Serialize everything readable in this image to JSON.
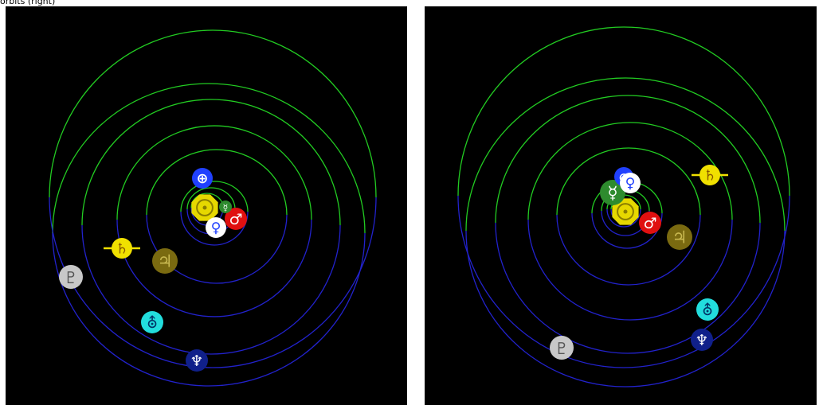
{
  "caption": "orbits (right)",
  "colors": {
    "background": "#000000",
    "orbit_far_side": "#22cc22",
    "orbit_near_side": "#2222cc"
  },
  "symbols": {
    "sun": "☉",
    "mercury": "☿",
    "venus": "♀",
    "earth": "⊕",
    "mars": "♂",
    "jupiter": "♃",
    "saturn": "♄",
    "uranus": "⛢",
    "neptune": "♆",
    "pluto": "♇"
  },
  "panels": [
    {
      "bodies": [
        {
          "name": "sun",
          "color": "#e6d800",
          "text_color": "#8a7d00"
        },
        {
          "name": "earth",
          "color": "#2040ff",
          "text_color": "#ffffff"
        },
        {
          "name": "venus",
          "color": "#ffffff",
          "text_color": "#2040ff"
        },
        {
          "name": "mars",
          "color": "#e01010",
          "text_color": "#ffffff"
        },
        {
          "name": "mercury",
          "color": "#2e8b2e",
          "text_color": "#ffffff"
        },
        {
          "name": "saturn",
          "color": "#f0e000",
          "text_color": "#8a5a00"
        },
        {
          "name": "jupiter",
          "color": "#7a6a10",
          "text_color": "#c8b850"
        },
        {
          "name": "pluto",
          "color": "#c8c8c8",
          "text_color": "#555555"
        },
        {
          "name": "uranus",
          "color": "#22dddd",
          "text_color": "#003366"
        },
        {
          "name": "neptune",
          "color": "#10208a",
          "text_color": "#ffffff"
        }
      ]
    },
    {
      "bodies": [
        {
          "name": "sun",
          "color": "#e6d800",
          "text_color": "#8a7d00"
        },
        {
          "name": "mercury",
          "color": "#2e8b2e",
          "text_color": "#ffffff"
        },
        {
          "name": "earth",
          "color": "#2040ff",
          "text_color": "#ffffff"
        },
        {
          "name": "venus",
          "color": "#ffffff",
          "text_color": "#2040ff"
        },
        {
          "name": "mars",
          "color": "#e01010",
          "text_color": "#ffffff"
        },
        {
          "name": "jupiter",
          "color": "#7a6a10",
          "text_color": "#c8b850"
        },
        {
          "name": "saturn",
          "color": "#f0e000",
          "text_color": "#8a5a00"
        },
        {
          "name": "uranus",
          "color": "#22dddd",
          "text_color": "#003366"
        },
        {
          "name": "neptune",
          "color": "#10208a",
          "text_color": "#ffffff"
        },
        {
          "name": "pluto",
          "color": "#c8c8c8",
          "text_color": "#555555"
        }
      ]
    }
  ]
}
